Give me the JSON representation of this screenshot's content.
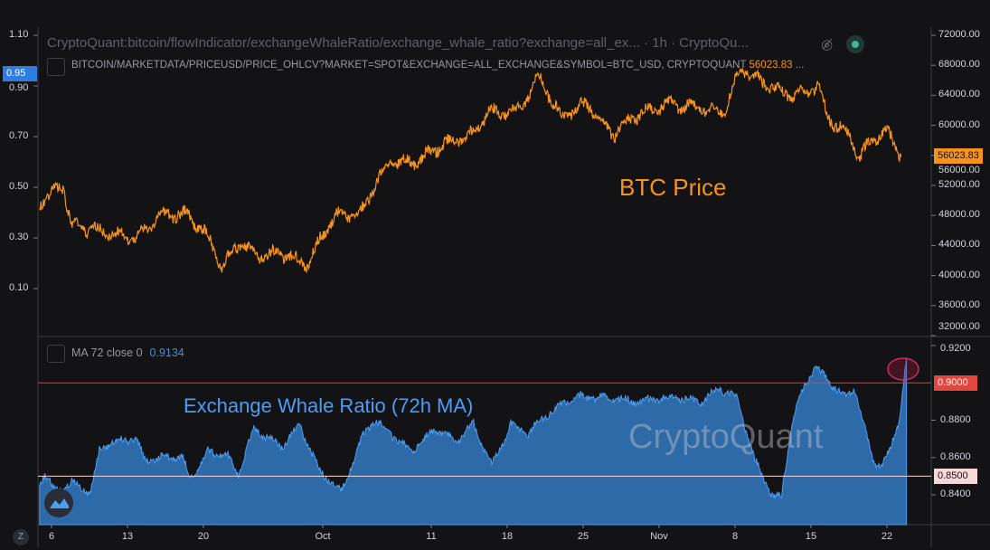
{
  "header": {
    "indicator_title": "CryptoQuant:bitcoin/flowIndicator/exchangeWhaleRatio/exchange_whale_ratio?exchange=all_ex... · 1h · CryptoQu...",
    "price_series_title": "BITCOIN/MARKETDATA/PRICEUSD/PRICE_OHLCV?MARKET=SPOT&EXCHANGE=ALL_EXCHANGE&SYMBOL=BTC_USD, CRYPTOQUANT",
    "price_series_value": "56023.83",
    "ellipsis": "...",
    "hide_icon": "eye-crossed-icon",
    "status_icon": "live-dot-icon"
  },
  "lower_pane": {
    "ma_label": "MA 72 close 0",
    "ma_value": "0.9134"
  },
  "annotations": {
    "btc_label": "BTC Price",
    "ratio_label": "Exchange Whale Ratio (72h MA)",
    "watermark": "CryptoQuant"
  },
  "toolbar": {
    "z_button": "Z"
  },
  "colors": {
    "btc": "#f7931a",
    "ratio_fill": "#2f6aa8",
    "ratio_line": "#4a9ff5",
    "red_line": "#f23645",
    "pink_line": "#f8d7da"
  },
  "chart_data": [
    {
      "type": "line",
      "name": "BTC Price",
      "x_unit": "day offset from Sep 1 (2021)",
      "x": [
        4.9,
        7.1,
        7.8,
        9.6,
        13.8,
        15.8,
        18.3,
        20,
        21.7,
        23.3,
        25.4,
        27.1,
        29.6,
        30.8,
        32.1,
        34.6,
        35.8,
        37.1,
        39.6,
        42.1,
        44.6,
        46.3,
        48.8,
        51,
        52.9,
        55.4,
        57.8,
        59.6,
        62.9,
        65.4,
        67.9,
        69.6,
        71.3,
        72.9,
        74.6,
        76.7,
        77.5,
        79.6,
        80.4,
        81.3,
        82.9,
        84.3
      ],
      "values": [
        49700,
        52100,
        46700,
        46100,
        44900,
        47900,
        48200,
        46100,
        41300,
        44300,
        42500,
        43100,
        41300,
        44900,
        47900,
        48500,
        52100,
        55100,
        55100,
        57500,
        58700,
        61700,
        61700,
        66500,
        61100,
        62900,
        58700,
        61100,
        62900,
        62300,
        61700,
        67700,
        65900,
        64700,
        63900,
        65300,
        61100,
        58700,
        55700,
        57500,
        59300,
        56024
      ],
      "last_value": "56023.83",
      "left_axis": {
        "ticks": [
          "1.10",
          "0.90",
          "0.70",
          "0.50",
          "0.30",
          "0.10"
        ],
        "highlight": "0.95"
      },
      "right_axis": {
        "ticks": [
          "72000.00",
          "68000.00",
          "64000.00",
          "60000.00",
          "56000.00",
          "52000.00",
          "48000.00",
          "44000.00",
          "40000.00",
          "36000.00",
          "32000.00"
        ],
        "ylim": [
          32000,
          72000
        ]
      }
    },
    {
      "type": "area",
      "name": "Exchange Whale Ratio (72h MA)",
      "x": [
        4.9,
        5.4,
        6.3,
        7.9,
        9.6,
        10.4,
        11.3,
        13.8,
        14.6,
        18,
        18.8,
        20.5,
        22.2,
        23.2,
        24.7,
        27.2,
        28.9,
        30.6,
        32.7,
        34.8,
        35.7,
        37.3,
        39,
        41.5,
        43.2,
        44.9,
        46.6,
        48.3,
        49.9,
        51.6,
        54.1,
        56.6,
        60,
        63.3,
        65.8,
        67.5,
        69.2,
        70.8,
        72.5,
        73.3,
        74.2,
        75,
        76.3,
        77.5,
        79.2,
        80,
        81.7,
        82.5,
        83.3,
        84.2,
        84.8
      ],
      "values": [
        0.8464,
        0.8512,
        0.8415,
        0.8464,
        0.8415,
        0.8633,
        0.8681,
        0.8705,
        0.8585,
        0.8609,
        0.8488,
        0.8633,
        0.8609,
        0.8512,
        0.8754,
        0.8657,
        0.8778,
        0.8536,
        0.8415,
        0.8729,
        0.8802,
        0.8729,
        0.8633,
        0.8754,
        0.8681,
        0.8778,
        0.856,
        0.8778,
        0.8729,
        0.8826,
        0.8923,
        0.8923,
        0.8899,
        0.8923,
        0.8899,
        0.8971,
        0.8923,
        0.8585,
        0.8391,
        0.8391,
        0.8778,
        0.8923,
        0.9092,
        0.9019,
        0.8923,
        0.8971,
        0.8585,
        0.856,
        0.8633,
        0.8826,
        0.9134
      ],
      "right_axis": {
        "ticks": [
          "0.9200",
          "0.8800",
          "0.8600",
          "0.8400"
        ],
        "ylim": [
          0.833,
          0.922
        ]
      },
      "reference_lines": [
        {
          "value": "0.9000",
          "color": "#f23645"
        },
        {
          "value": "0.8500",
          "color": "#f8d7da"
        }
      ]
    }
  ],
  "x_axis": {
    "ticks": [
      {
        "label": "6",
        "day": 6
      },
      {
        "label": "13",
        "day": 13
      },
      {
        "label": "20",
        "day": 20
      },
      {
        "label": "Oct",
        "day": 31
      },
      {
        "label": "11",
        "day": 41
      },
      {
        "label": "18",
        "day": 48
      },
      {
        "label": "25",
        "day": 55
      },
      {
        "label": "Nov",
        "day": 62
      },
      {
        "label": "8",
        "day": 69
      },
      {
        "label": "15",
        "day": 76
      },
      {
        "label": "22",
        "day": 83
      }
    ]
  }
}
